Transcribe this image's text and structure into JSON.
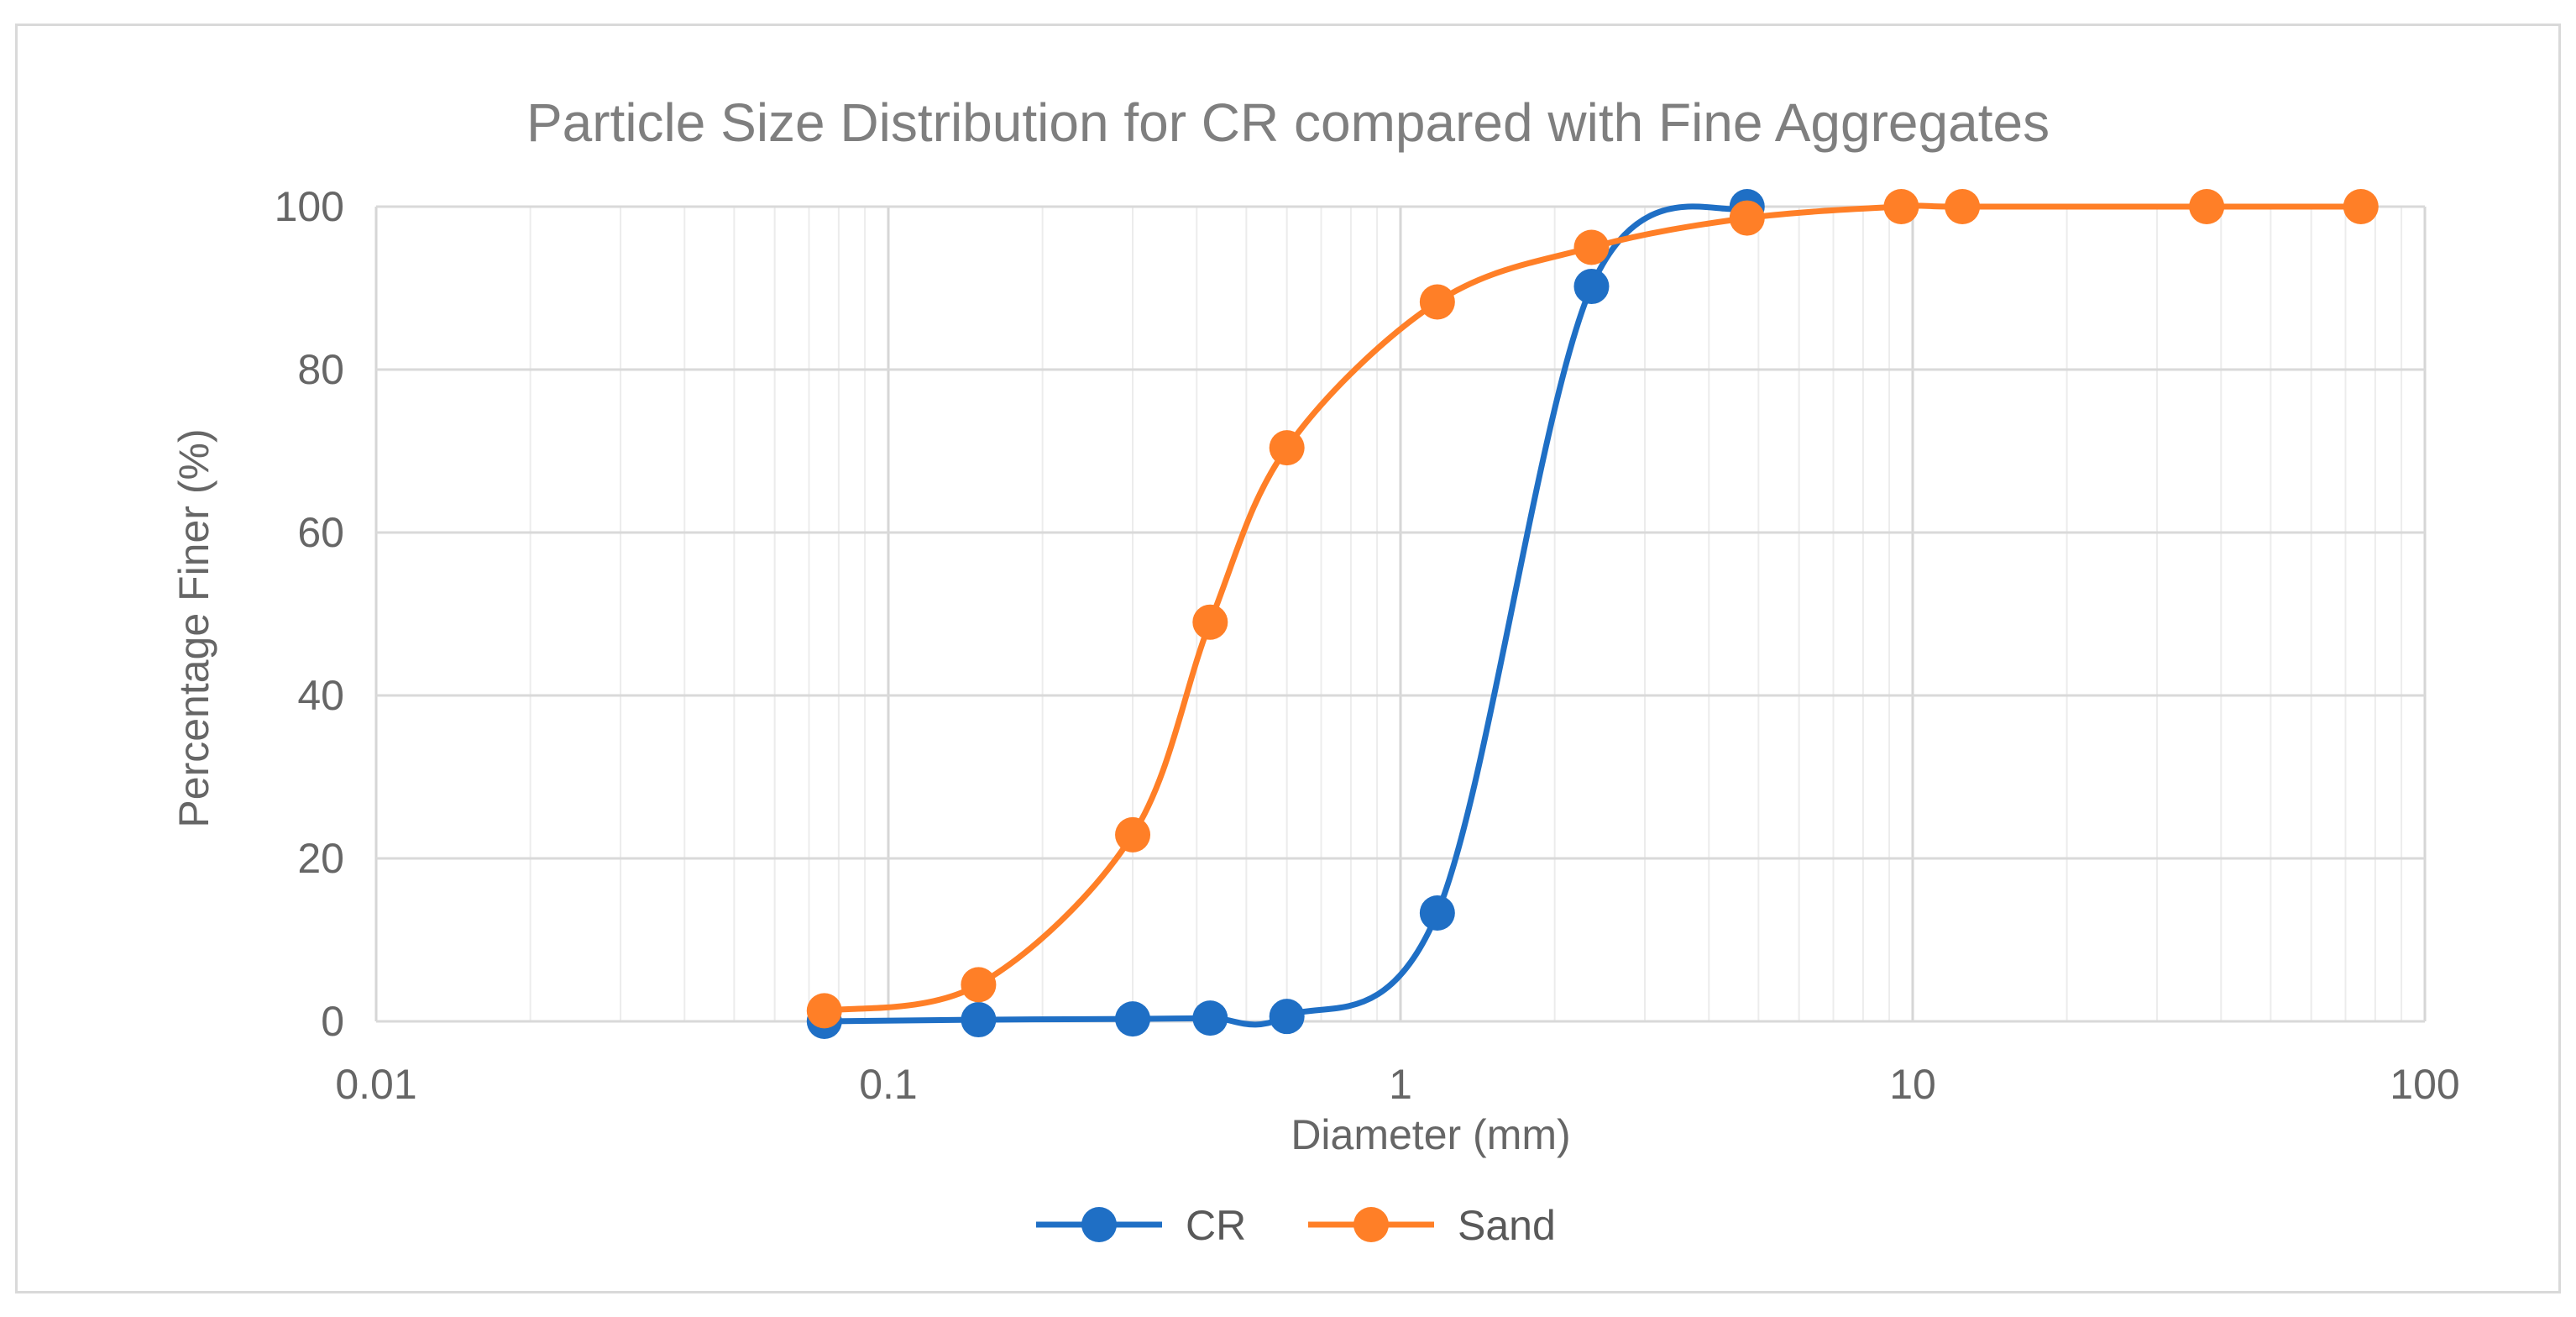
{
  "chart_data": {
    "type": "scatter",
    "title": "Particle Size Distribution for CR compared with Fine Aggregates",
    "xlabel": "Diameter (mm)",
    "ylabel": "Percentage Finer (%)",
    "x_scale": "log",
    "xlim": [
      0.01,
      100
    ],
    "ylim": [
      0,
      100
    ],
    "x_ticks": [
      "0.01",
      "0.1",
      "1",
      "10",
      "100"
    ],
    "y_ticks": [
      "0",
      "20",
      "40",
      "60",
      "80",
      "100"
    ],
    "grid": true,
    "smooth_lines": true,
    "markers": true,
    "legend_position": "bottom",
    "series": [
      {
        "name": "CR",
        "color": "#1f6fc5",
        "x": [
          0.075,
          0.15,
          0.3,
          0.425,
          0.6,
          1.18,
          2.36,
          4.75
        ],
        "y": [
          0,
          0.2,
          0.3,
          0.4,
          0.6,
          13.3,
          90.2,
          100
        ]
      },
      {
        "name": "Sand",
        "color": "#ff7f27",
        "x": [
          0.075,
          0.15,
          0.3,
          0.425,
          0.6,
          1.18,
          2.36,
          4.75,
          9.5,
          12.5,
          37.5,
          75
        ],
        "y": [
          1.3,
          4.5,
          22.9,
          49,
          70.4,
          88.3,
          95,
          98.6,
          100,
          100,
          100,
          100
        ]
      }
    ]
  }
}
